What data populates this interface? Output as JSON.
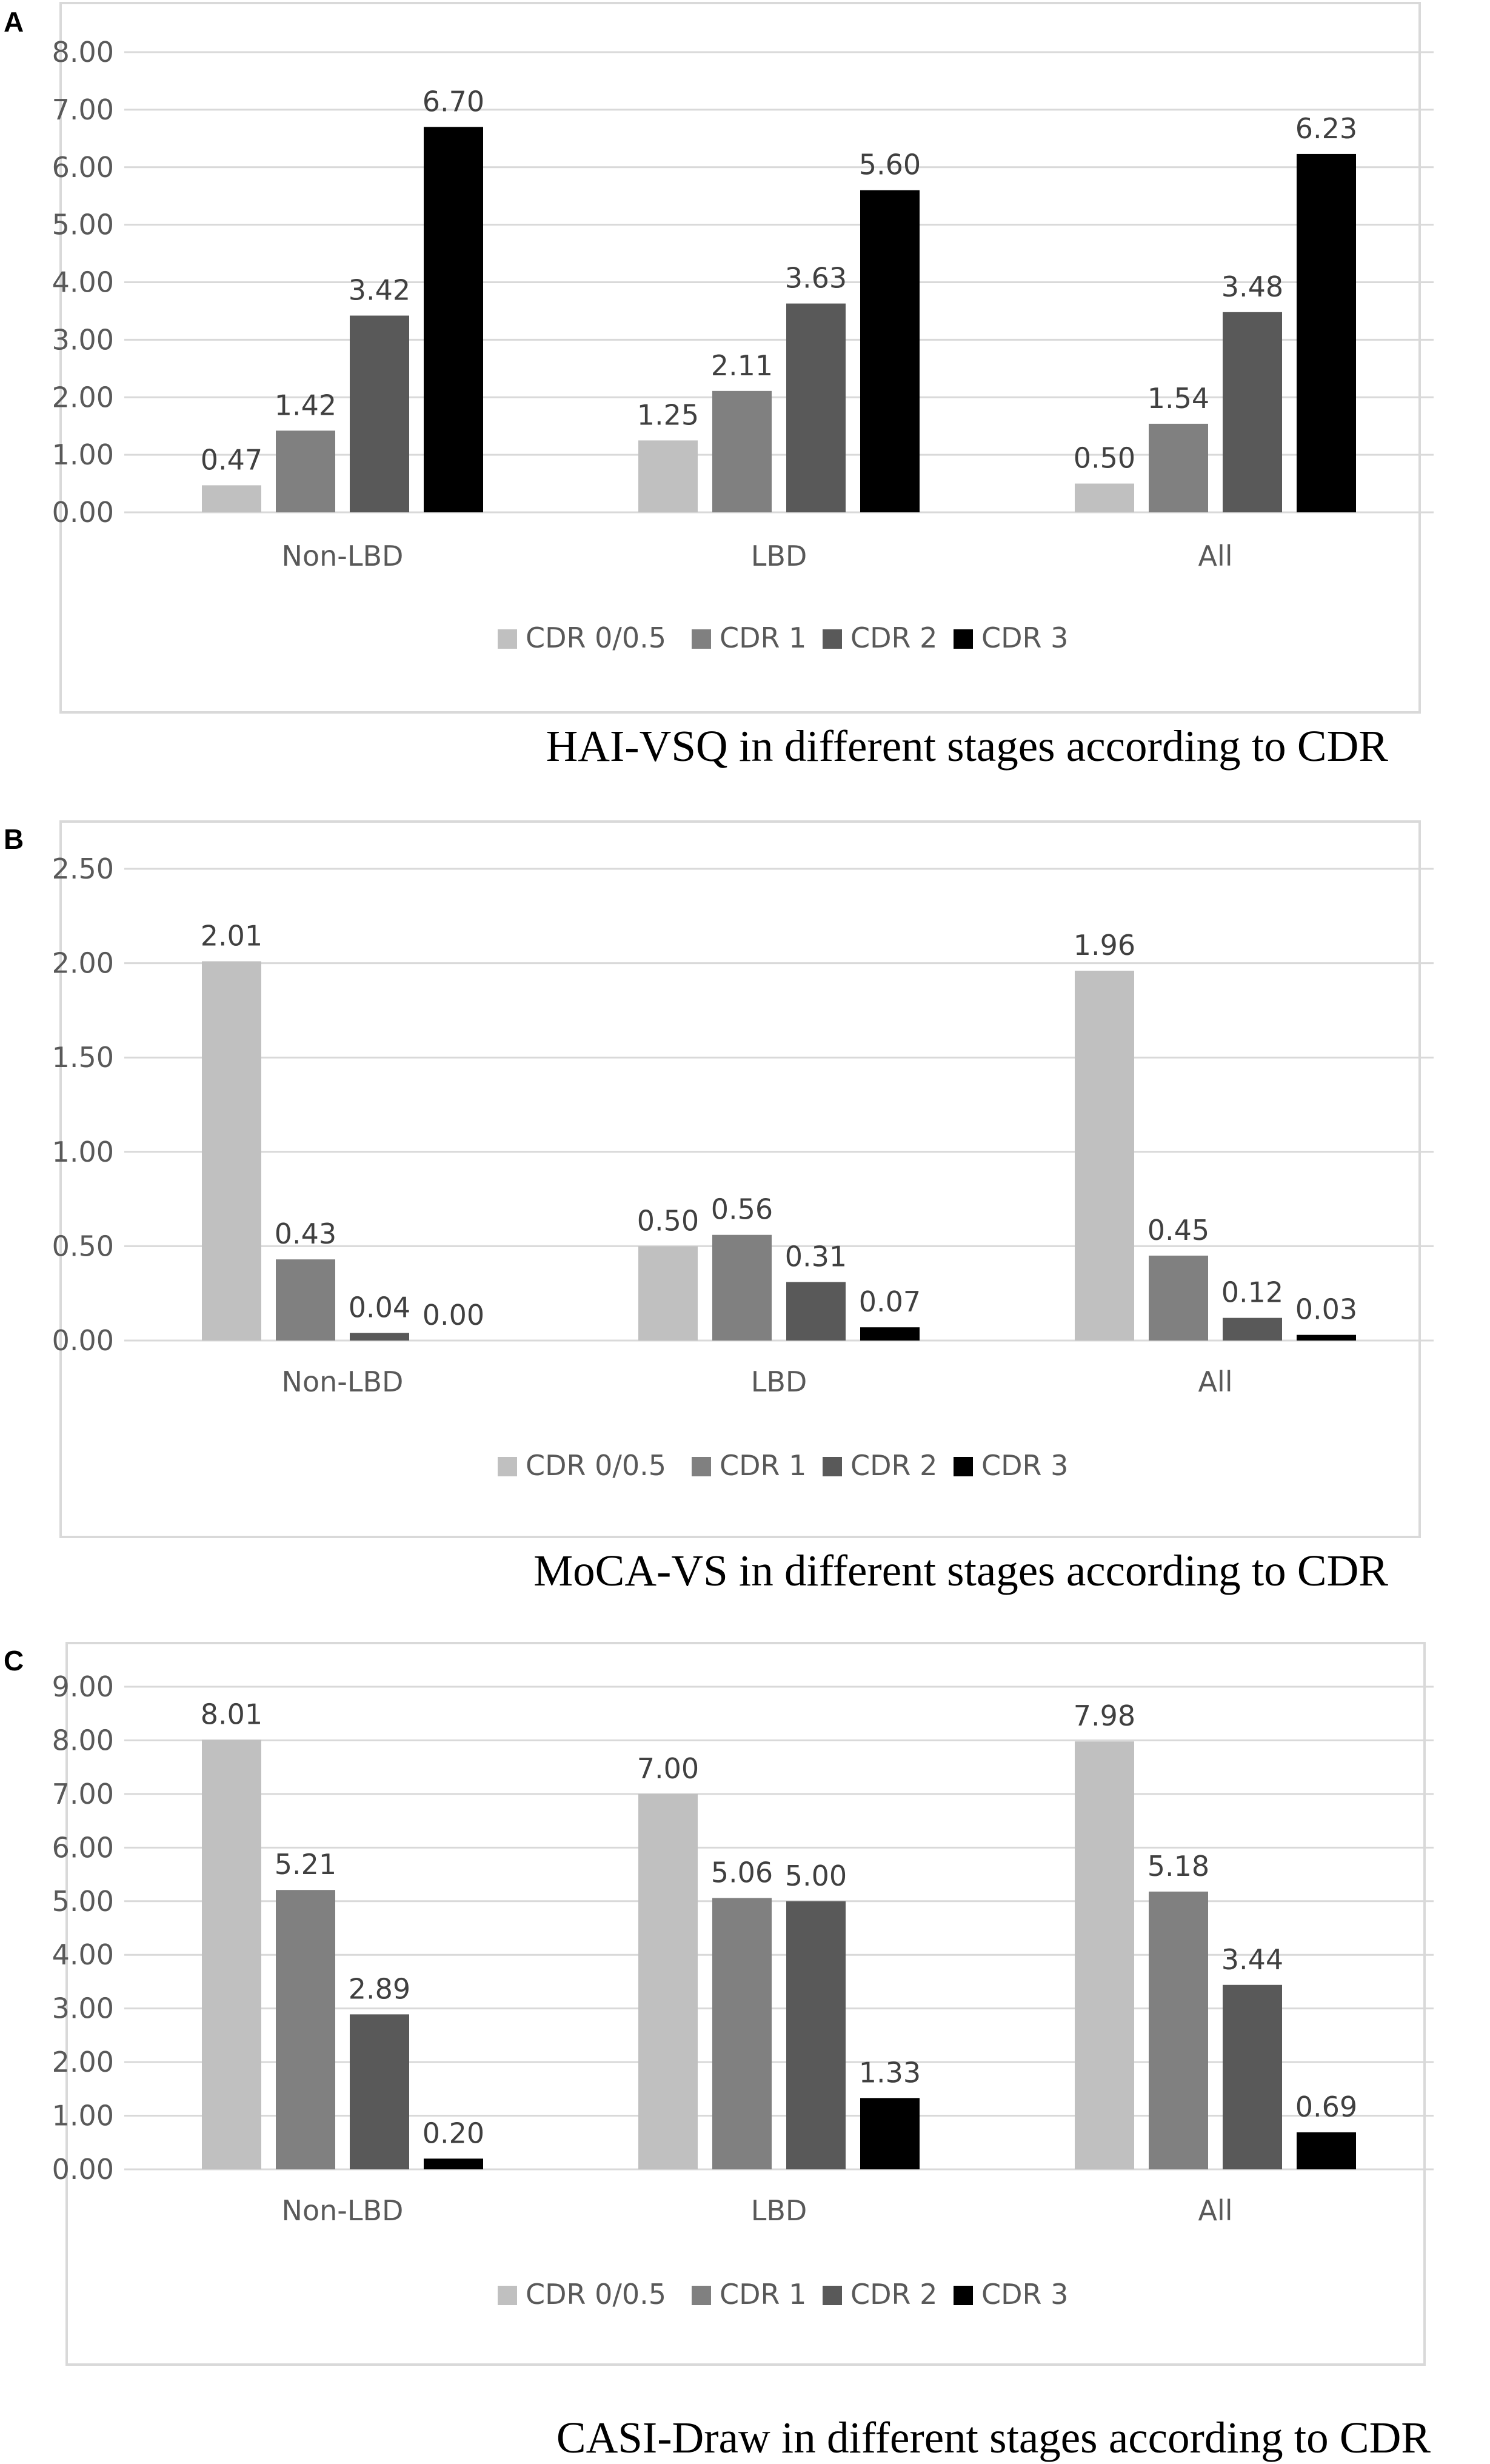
{
  "chart_data": [
    {
      "panel": "A",
      "type": "bar",
      "title": "HAI-VSQ in different stages according to CDR",
      "categories": [
        "Non-LBD",
        "LBD",
        "All"
      ],
      "series": [
        {
          "name": "CDR 0/0.5",
          "values": [
            0.47,
            1.25,
            0.5
          ],
          "labels": [
            "0.47",
            "1.25",
            "0.50"
          ],
          "color": "#c0c0c0"
        },
        {
          "name": "CDR 1",
          "values": [
            1.42,
            2.11,
            1.54
          ],
          "labels": [
            "1.42",
            "2.11",
            "1.54"
          ],
          "color": "#808080"
        },
        {
          "name": "CDR 2",
          "values": [
            3.42,
            3.63,
            3.48
          ],
          "labels": [
            "3.42",
            "3.63",
            "3.48"
          ],
          "color": "#595959"
        },
        {
          "name": "CDR 3",
          "values": [
            6.7,
            5.6,
            6.23
          ],
          "labels": [
            "6.70",
            "5.60",
            "6.23"
          ],
          "color": "#000000"
        }
      ],
      "ylim": [
        0,
        8
      ],
      "yticks": [
        "0.00",
        "1.00",
        "2.00",
        "3.00",
        "4.00",
        "5.00",
        "6.00",
        "7.00",
        "8.00"
      ],
      "grid": true,
      "legend": "bottom"
    },
    {
      "panel": "B",
      "type": "bar",
      "title": "MoCA-VS in different stages according to CDR",
      "categories": [
        "Non-LBD",
        "LBD",
        "All"
      ],
      "series": [
        {
          "name": "CDR 0/0.5",
          "values": [
            2.01,
            0.5,
            1.96
          ],
          "labels": [
            "2.01",
            "0.50",
            "1.96"
          ],
          "color": "#c0c0c0"
        },
        {
          "name": "CDR 1",
          "values": [
            0.43,
            0.56,
            0.45
          ],
          "labels": [
            "0.43",
            "0.56",
            "0.45"
          ],
          "color": "#808080"
        },
        {
          "name": "CDR 2",
          "values": [
            0.04,
            0.31,
            0.12
          ],
          "labels": [
            "0.04",
            "0.31",
            "0.12"
          ],
          "color": "#595959"
        },
        {
          "name": "CDR 3",
          "values": [
            0.0,
            0.07,
            0.03
          ],
          "labels": [
            "0.00",
            "0.07",
            "0.03"
          ],
          "color": "#000000"
        }
      ],
      "ylim": [
        0,
        2.5
      ],
      "yticks": [
        "0.00",
        "0.50",
        "1.00",
        "1.50",
        "2.00",
        "2.50"
      ],
      "grid": true,
      "legend": "bottom"
    },
    {
      "panel": "C",
      "type": "bar",
      "title": "CASI-Draw in different stages according to CDR",
      "categories": [
        "Non-LBD",
        "LBD",
        "All"
      ],
      "series": [
        {
          "name": "CDR 0/0.5",
          "values": [
            8.01,
            7.0,
            7.98
          ],
          "labels": [
            "8.01",
            "7.00",
            "7.98"
          ],
          "color": "#c0c0c0"
        },
        {
          "name": "CDR 1",
          "values": [
            5.21,
            5.06,
            5.18
          ],
          "labels": [
            "5.21",
            "5.06",
            "5.18"
          ],
          "color": "#808080"
        },
        {
          "name": "CDR 2",
          "values": [
            2.89,
            5.0,
            3.44
          ],
          "labels": [
            "2.89",
            "5.00",
            "3.44"
          ],
          "color": "#595959"
        },
        {
          "name": "CDR 3",
          "values": [
            0.2,
            1.33,
            0.69
          ],
          "labels": [
            "0.20",
            "1.33",
            "0.69"
          ],
          "color": "#000000"
        }
      ],
      "ylim": [
        0,
        9
      ],
      "yticks": [
        "0.00",
        "1.00",
        "2.00",
        "3.00",
        "4.00",
        "5.00",
        "6.00",
        "7.00",
        "8.00",
        "9.00"
      ],
      "grid": true,
      "legend": "bottom"
    }
  ]
}
